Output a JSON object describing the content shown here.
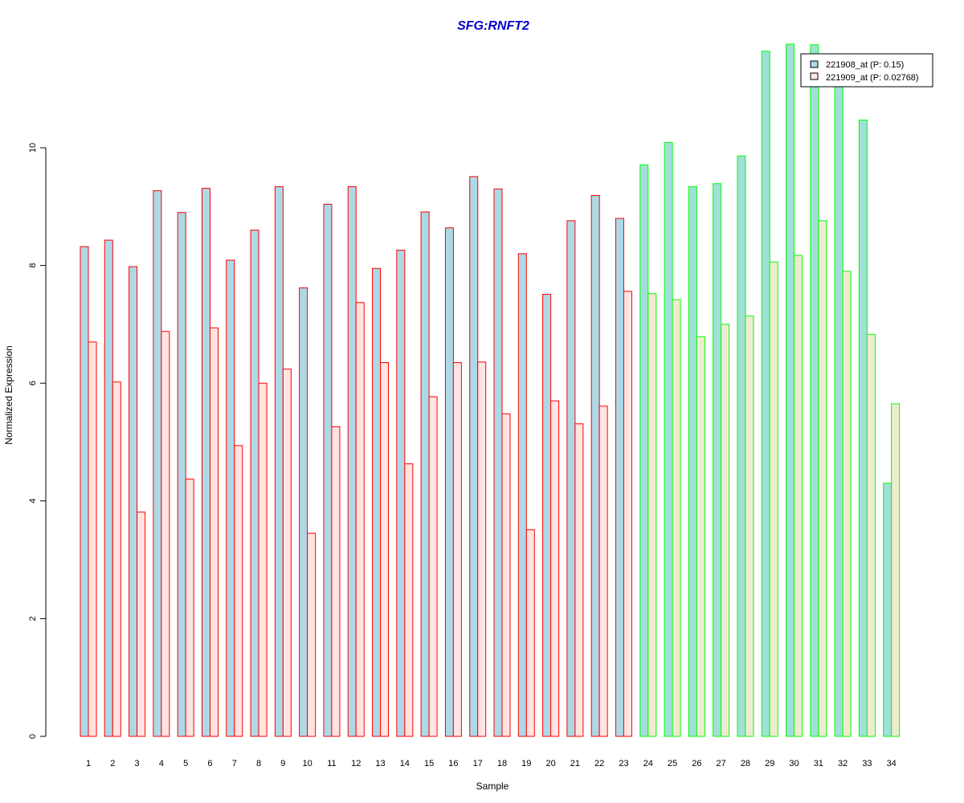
{
  "chart_data": {
    "type": "bar",
    "title": "SFG:RNFT2",
    "xlabel": "Sample",
    "ylabel": "Normalized Expression",
    "ylim": [
      0,
      12
    ],
    "yticks": [
      0,
      2,
      4,
      6,
      8,
      10
    ],
    "categories": [
      "1",
      "2",
      "3",
      "4",
      "5",
      "6",
      "7",
      "8",
      "9",
      "10",
      "11",
      "12",
      "13",
      "14",
      "15",
      "16",
      "17",
      "18",
      "19",
      "20",
      "21",
      "22",
      "23",
      "24",
      "25",
      "26",
      "27",
      "28",
      "29",
      "30",
      "31",
      "32",
      "33",
      "34"
    ],
    "series": [
      {
        "name": "221908_at (P: 0.15)",
        "values": [
          8.32,
          8.43,
          7.98,
          9.27,
          8.9,
          9.31,
          8.09,
          8.6,
          9.34,
          7.62,
          9.04,
          9.34,
          7.95,
          8.26,
          8.91,
          8.64,
          9.51,
          9.3,
          8.2,
          7.51,
          8.76,
          9.19,
          8.8,
          9.71,
          10.09,
          9.34,
          9.39,
          9.86,
          11.64,
          11.76,
          11.75,
          11.18,
          10.47,
          4.3
        ]
      },
      {
        "name": "221909_at (P: 0.02768)",
        "values": [
          6.7,
          6.02,
          3.81,
          6.88,
          4.37,
          6.94,
          4.94,
          6.0,
          6.24,
          3.45,
          5.26,
          7.37,
          6.35,
          4.63,
          5.77,
          6.35,
          6.36,
          5.48,
          3.51,
          5.7,
          5.31,
          5.61,
          7.56,
          7.52,
          7.42,
          6.79,
          7.0,
          7.14,
          8.06,
          8.17,
          8.76,
          7.9,
          6.83,
          5.65
        ]
      }
    ],
    "groups": [
      {
        "from": 1,
        "to": 23,
        "border": "#ff0000",
        "fills": [
          "#add8e6",
          "#ffe4e1"
        ]
      },
      {
        "from": 24,
        "to": 34,
        "border": "#00ff00",
        "fills": [
          "#a0e0d8",
          "#f0ebd0"
        ]
      }
    ],
    "title_color": "#0000cd",
    "legend_position": "top-right",
    "grid": false
  }
}
